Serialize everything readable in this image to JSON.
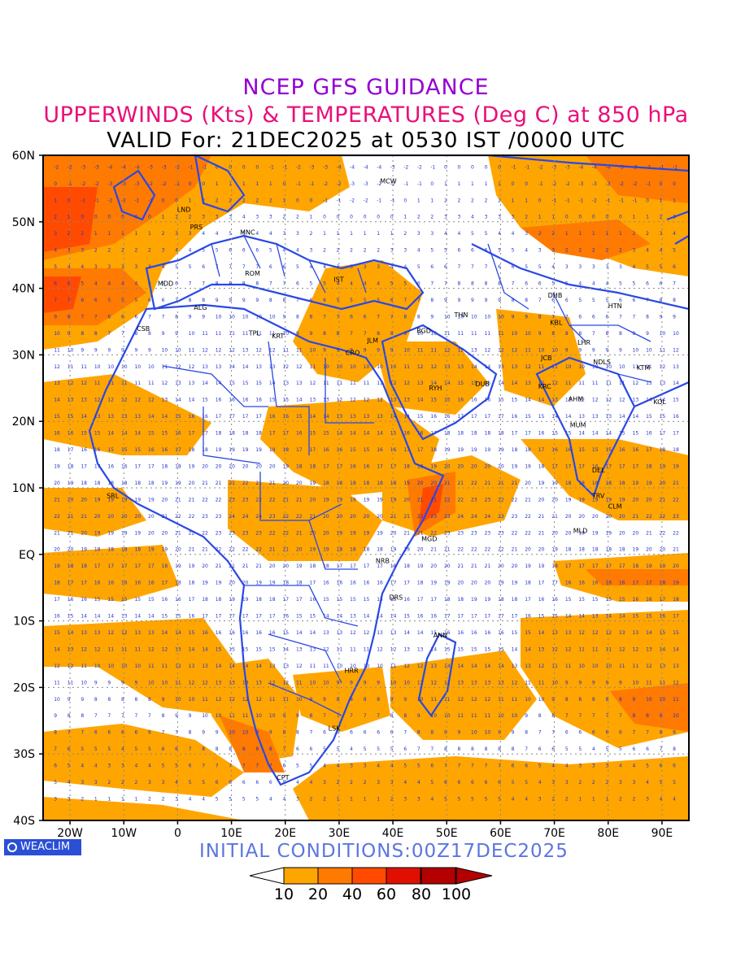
{
  "titles": {
    "line1": "NCEP GFS GUIDANCE",
    "line2": "UPPERWINDS (Kts) & TEMPERATURES (Deg C) at 850 hPa",
    "line3": "VALID For: 21DEC2025 at 0530 IST /0000 UTC"
  },
  "axes": {
    "lat_labels": [
      "60N",
      "50N",
      "40N",
      "30N",
      "20N",
      "10N",
      "EQ",
      "10S",
      "20S",
      "30S",
      "40S"
    ],
    "lon_labels": [
      "20W",
      "10W",
      "0",
      "10E",
      "20E",
      "30E",
      "40E",
      "50E",
      "60E",
      "70E",
      "80E",
      "90E"
    ],
    "lat_range": [
      -40,
      60
    ],
    "lon_range": [
      -25,
      95
    ]
  },
  "colors": {
    "shade_10_20": "#ffa500",
    "shade_20_40": "#ff7a00",
    "shade_40_60": "#ff4a00",
    "shade_60_80": "#e01000",
    "shade_80_100": "#b40000",
    "coast": "#2a48e6",
    "temp_label": "#2233cc"
  },
  "stations": [
    {
      "code": "MCW",
      "lon": 37.6,
      "lat": 55.8
    },
    {
      "code": "LND",
      "lon": -0.1,
      "lat": 51.5
    },
    {
      "code": "PRS",
      "lon": 2.3,
      "lat": 48.9
    },
    {
      "code": "MNC",
      "lon": 11.6,
      "lat": 48.1
    },
    {
      "code": "ROM",
      "lon": 12.5,
      "lat": 41.9
    },
    {
      "code": "IST",
      "lon": 29.0,
      "lat": 41.0
    },
    {
      "code": "MDD",
      "lon": -3.7,
      "lat": 40.4
    },
    {
      "code": "ALG",
      "lon": 3.0,
      "lat": 36.8
    },
    {
      "code": "CSB",
      "lon": -7.6,
      "lat": 33.6
    },
    {
      "code": "TPL",
      "lon": 13.2,
      "lat": 32.9
    },
    {
      "code": "KRT",
      "lon": 17.5,
      "lat": 32.5
    },
    {
      "code": "CRO",
      "lon": 31.2,
      "lat": 30.0
    },
    {
      "code": "JLM",
      "lon": 35.2,
      "lat": 31.8
    },
    {
      "code": "BGD",
      "lon": 44.4,
      "lat": 33.3
    },
    {
      "code": "THN",
      "lon": 51.4,
      "lat": 35.7
    },
    {
      "code": "DHB",
      "lon": 68.8,
      "lat": 38.6
    },
    {
      "code": "KBL",
      "lon": 69.2,
      "lat": 34.5
    },
    {
      "code": "LHR",
      "lon": 74.3,
      "lat": 31.5
    },
    {
      "code": "NDLS",
      "lon": 77.2,
      "lat": 28.6
    },
    {
      "code": "HTN",
      "lon": 80.0,
      "lat": 37.0
    },
    {
      "code": "KTM",
      "lon": 85.3,
      "lat": 27.7
    },
    {
      "code": "JCB",
      "lon": 67.5,
      "lat": 29.2
    },
    {
      "code": "KRC",
      "lon": 67.0,
      "lat": 24.9
    },
    {
      "code": "AHM",
      "lon": 72.6,
      "lat": 23.0
    },
    {
      "code": "KOL",
      "lon": 88.4,
      "lat": 22.6
    },
    {
      "code": "RYH",
      "lon": 46.7,
      "lat": 24.7
    },
    {
      "code": "DUB",
      "lon": 55.3,
      "lat": 25.3
    },
    {
      "code": "MUM",
      "lon": 72.9,
      "lat": 19.1
    },
    {
      "code": "DEL",
      "lon": 77.0,
      "lat": 12.3
    },
    {
      "code": "TRV",
      "lon": 77.0,
      "lat": 8.5
    },
    {
      "code": "CLM",
      "lon": 80.0,
      "lat": 6.9
    },
    {
      "code": "MLD",
      "lon": 73.5,
      "lat": 3.2
    },
    {
      "code": "SRL",
      "lon": -13.2,
      "lat": 8.5
    },
    {
      "code": "MGD",
      "lon": 45.3,
      "lat": 2.0
    },
    {
      "code": "NRB",
      "lon": 36.8,
      "lat": -1.3
    },
    {
      "code": "DRS",
      "lon": 39.3,
      "lat": -6.8
    },
    {
      "code": "ANN",
      "lon": 47.5,
      "lat": -12.5
    },
    {
      "code": "HRR",
      "lon": 31.0,
      "lat": -17.8
    },
    {
      "code": "LSK",
      "lon": 28.0,
      "lat": -26.5
    },
    {
      "code": "CPT",
      "lon": 18.4,
      "lat": -33.9
    }
  ],
  "branding": {
    "weaclim": "WEACLIM"
  },
  "initial_conditions": "INITIAL CONDITIONS:00Z17DEC2025",
  "colorbar": {
    "labels": [
      "10",
      "20",
      "40",
      "60",
      "80",
      "100"
    ],
    "colors": [
      "#ffffff",
      "#ffa500",
      "#ff7a00",
      "#ff4a00",
      "#e01000",
      "#b40000",
      "#b40000"
    ]
  }
}
